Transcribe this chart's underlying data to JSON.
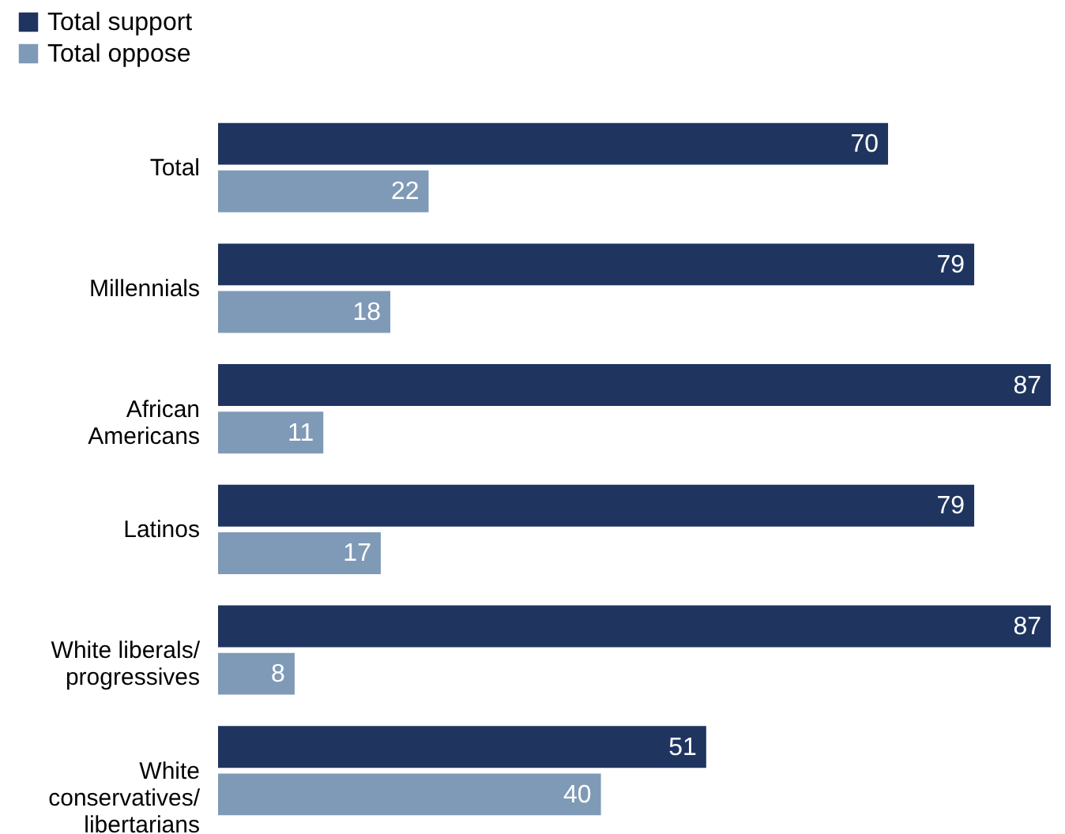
{
  "chart_data": {
    "type": "bar",
    "orientation": "horizontal",
    "categories": [
      "Total",
      "Millennials",
      "African Americans",
      "Latinos",
      "White liberals/progressives",
      "White conservatives/libertarians"
    ],
    "series": [
      {
        "name": "Total support",
        "color": "#1f3560",
        "values": [
          70,
          79,
          87,
          79,
          87,
          51
        ]
      },
      {
        "name": "Total oppose",
        "color": "#7f9ab6",
        "values": [
          22,
          18,
          11,
          17,
          8,
          40
        ]
      }
    ],
    "data_labels": true,
    "legend": "top left"
  }
}
